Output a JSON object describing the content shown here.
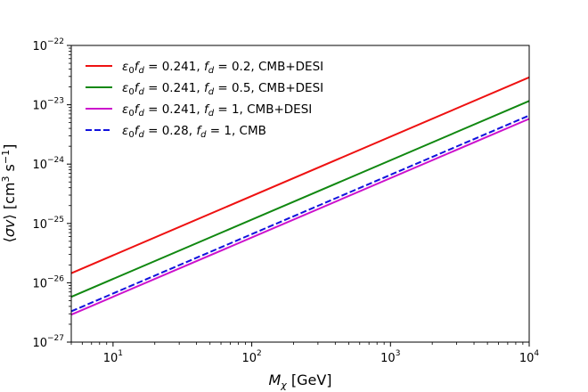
{
  "chart_data": {
    "type": "line",
    "xscale": "log",
    "yscale": "log",
    "xlim": [
      5,
      10000
    ],
    "ylim": [
      1e-27,
      1e-22
    ],
    "xlabel": "M_χ [GeV]",
    "ylabel": "⟨σv⟩ [cm³ s⁻¹]",
    "xticks": [
      {
        "value": 10,
        "base": "10",
        "exp": "1"
      },
      {
        "value": 100,
        "base": "10",
        "exp": "2"
      },
      {
        "value": 1000,
        "base": "10",
        "exp": "3"
      },
      {
        "value": 10000,
        "base": "10",
        "exp": "4"
      }
    ],
    "yticks": [
      {
        "value": 1e-27,
        "base": "10",
        "exp": "−27"
      },
      {
        "value": 1e-26,
        "base": "10",
        "exp": "−26"
      },
      {
        "value": 1e-25,
        "base": "10",
        "exp": "−25"
      },
      {
        "value": 1e-24,
        "base": "10",
        "exp": "−24"
      },
      {
        "value": 1e-23,
        "base": "10",
        "exp": "−23"
      },
      {
        "value": 1e-22,
        "base": "10",
        "exp": "−22"
      }
    ],
    "legend_position": "upper-left",
    "series": [
      {
        "name": "ε0fd = 0.241, fd = 0.2, CMB+DESI",
        "label_parts": {
          "v1": "0.241",
          "v2": "0.2",
          "suffix": "CMB+DESI"
        },
        "color": "#ee1111",
        "dash": "solid",
        "x": [
          5,
          10000
        ],
        "y": [
          1.45e-26,
          2.9e-23
        ]
      },
      {
        "name": "ε0fd = 0.241, fd = 0.5, CMB+DESI",
        "label_parts": {
          "v1": "0.241",
          "v2": "0.5",
          "suffix": "CMB+DESI"
        },
        "color": "#118811",
        "dash": "solid",
        "x": [
          5,
          10000
        ],
        "y": [
          5.8e-27,
          1.16e-23
        ]
      },
      {
        "name": "ε0fd = 0.241, fd = 1, CMB+DESI",
        "label_parts": {
          "v1": "0.241",
          "v2": "1",
          "suffix": "CMB+DESI"
        },
        "color": "#cc11cc",
        "dash": "solid",
        "x": [
          5,
          10000
        ],
        "y": [
          2.9e-27,
          5.8e-24
        ]
      },
      {
        "name": "ε0fd = 0.28, fd = 1, CMB",
        "label_parts": {
          "v1": "0.28",
          "v2": "1",
          "suffix": "CMB"
        },
        "color": "#1111dd",
        "dash": "dashed",
        "x": [
          5,
          10000
        ],
        "y": [
          3.3e-27,
          6.6e-24
        ]
      }
    ]
  }
}
